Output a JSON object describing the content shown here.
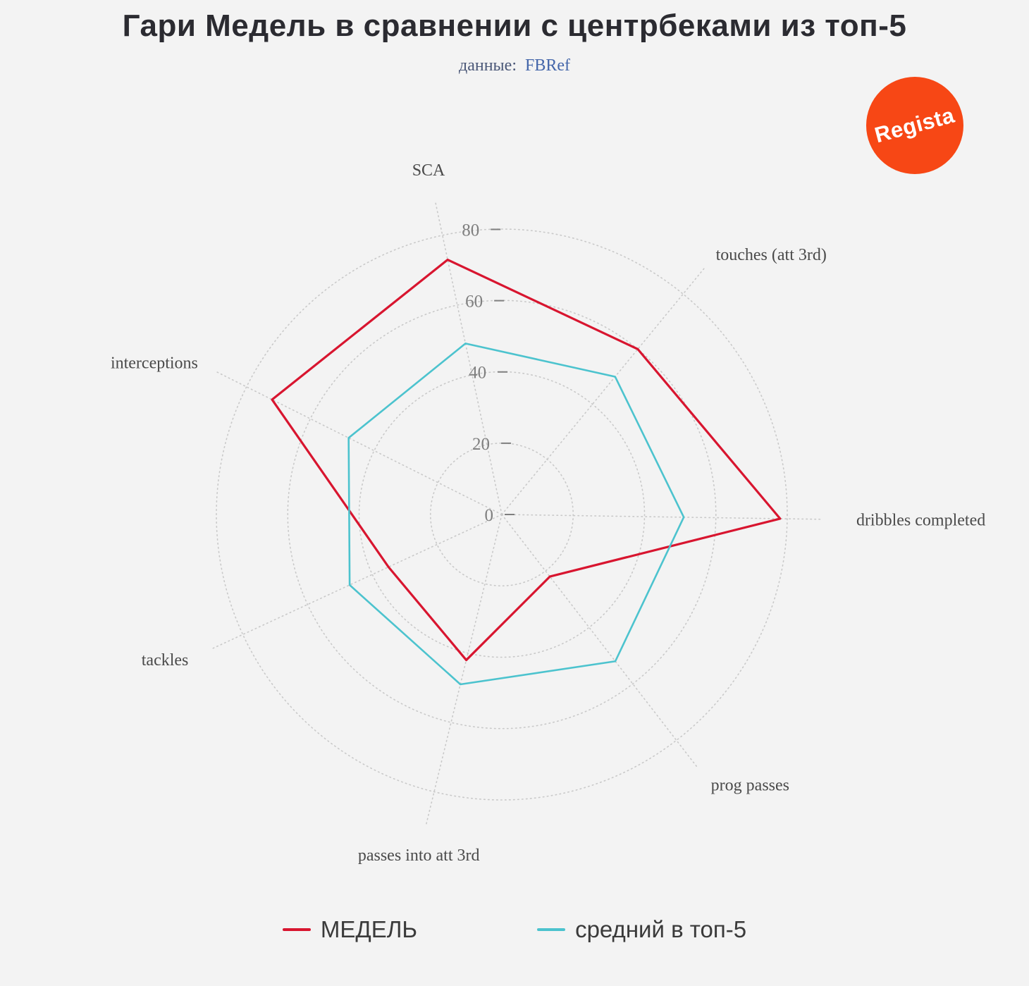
{
  "header": {
    "title": "Гари Медель в сравнении с центрбеками из топ-5",
    "subtitle_label": "данные:",
    "subtitle_source": "FBRef"
  },
  "badge": {
    "text": "Regista",
    "color": "#f74715",
    "text_color": "#ffffff"
  },
  "chart_data": {
    "type": "radar",
    "title": "Гари Медель в сравнении с центрбеками из топ-5",
    "subtitle": "данные: FBRef",
    "categories": [
      "SCA",
      "touches (att 3rd)",
      "dribbles completed",
      "prog passes",
      "passes into att 3rd",
      "tackles",
      "interceptions"
    ],
    "series": [
      {
        "name": "МЕДЕЛЬ",
        "color": "#d8152f",
        "values": [
          73,
          60,
          78,
          22,
          42,
          35,
          72
        ]
      },
      {
        "name": "средний в топ-5",
        "color": "#4cc3ce",
        "values": [
          49,
          50,
          51,
          52,
          49,
          47,
          48
        ]
      }
    ],
    "r_ticks": [
      0,
      20,
      40,
      60,
      80
    ],
    "r_max": 80,
    "start_angle_deg": 102,
    "direction": "clockwise",
    "grid": "dotted",
    "grid_color": "#c9c9c9",
    "tick_color": "#7f7f7f",
    "axis_label_color": "#4a4a4a",
    "legend_position": "bottom"
  }
}
